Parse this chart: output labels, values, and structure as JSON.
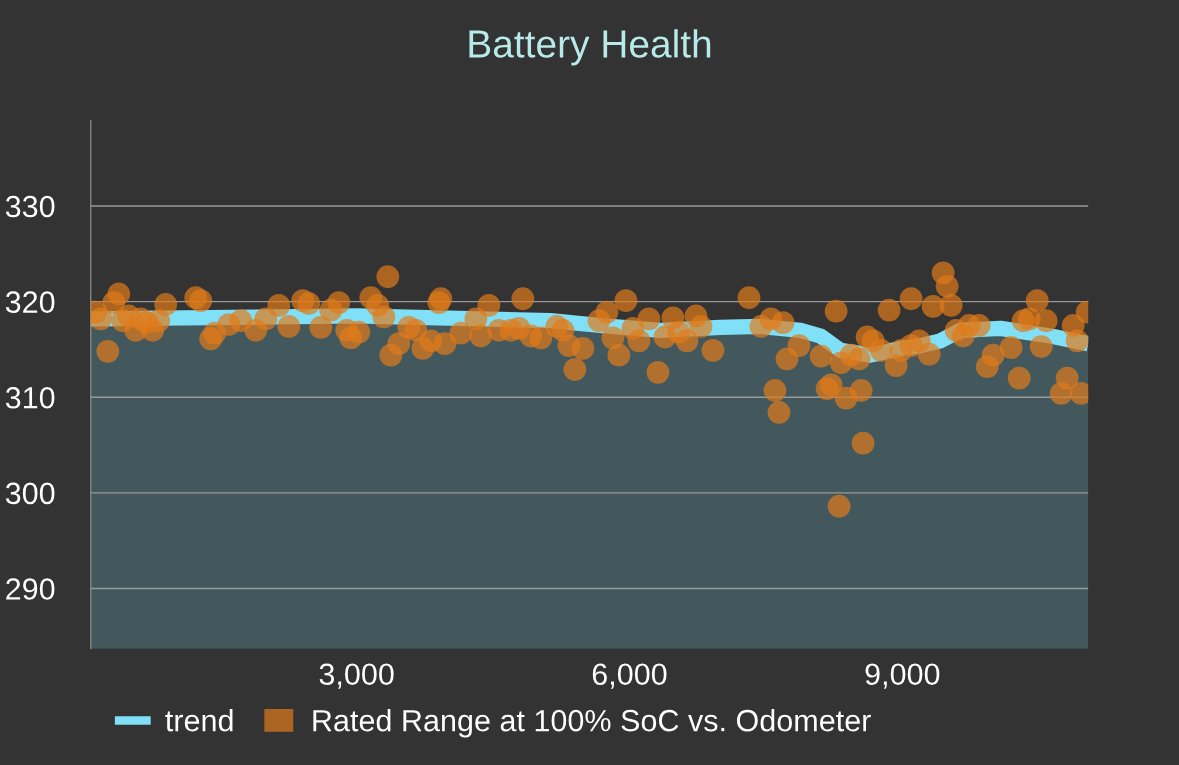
{
  "chart_data": {
    "type": "scatter",
    "title": "Battery Health",
    "xlim": [
      77,
      11044
    ],
    "ylim": [
      283.7,
      338.9
    ],
    "xticks": [
      {
        "value": 3000,
        "label": "3,000"
      },
      {
        "value": 6000,
        "label": "6,000"
      },
      {
        "value": 9000,
        "label": "9,000"
      }
    ],
    "yticks": [
      290,
      300,
      310,
      320,
      330
    ],
    "grid": "y",
    "legend": "bottom",
    "series": [
      {
        "name": "trend",
        "type": "area",
        "color": "#80e0f8",
        "x": [
          77,
          3000,
          5132,
          5682,
          6341,
          7000,
          7440,
          7880,
          8100,
          8320,
          8650,
          8980,
          9200,
          9420,
          9640,
          10080,
          10630,
          11044
        ],
        "values": [
          318.2,
          318.5,
          318.0,
          317.5,
          317.0,
          317.3,
          317.4,
          317.0,
          316.4,
          314.9,
          314.4,
          315.1,
          315.4,
          315.9,
          317.0,
          317.2,
          316.4,
          315.6
        ]
      },
      {
        "name": "Rated Range at 100% SoC vs. Odometer",
        "marker": "circle",
        "color": "#e07b1a",
        "x": [
          132,
          187,
          264,
          330,
          385,
          429,
          495,
          571,
          626,
          692,
          758,
          824,
          901,
          1231,
          1286,
          1396,
          1440,
          1594,
          1726,
          1891,
          2001,
          2144,
          2254,
          2408,
          2474,
          2606,
          2716,
          2804,
          2892,
          2936,
          3024,
          3156,
          3233,
          3299,
          3343,
          3376,
          3464,
          3574,
          3651,
          3728,
          3816,
          3904,
          3926,
          3970,
          4146,
          4311,
          4366,
          4454,
          4564,
          4696,
          4784,
          4828,
          4916,
          5026,
          5202,
          5268,
          5334,
          5400,
          5488,
          5664,
          5752,
          5818,
          5884,
          5961,
          6038,
          6104,
          6214,
          6313,
          6390,
          6478,
          6544,
          6632,
          6731,
          6786,
          6918,
          7314,
          7446,
          7556,
          7644,
          7600,
          7688,
          7732,
          7864,
          8107,
          8173,
          8217,
          8272,
          8327,
          8382,
          8437,
          8525,
          8547,
          8569,
          8305,
          8613,
          8679,
          8767,
          8855,
          8932,
          8987,
          9097,
          9097,
          9185,
          9295,
          9339,
          9449,
          9493,
          9537,
          9592,
          9669,
          9735,
          9845,
          9934,
          9999,
          10197,
          10285,
          10329,
          10395,
          10483,
          10527,
          10582,
          10747,
          10813,
          10879,
          10923,
          10967,
          11033
        ],
        "values": [
          318.9,
          318.2,
          314.8,
          319.9,
          320.8,
          318.0,
          318.5,
          317.0,
          318.2,
          317.8,
          317.0,
          318.0,
          319.7,
          320.4,
          320.1,
          316.1,
          316.7,
          317.6,
          318.0,
          317.0,
          318.2,
          319.6,
          317.4,
          320.1,
          319.8,
          317.3,
          319.1,
          319.9,
          317.0,
          316.2,
          316.8,
          320.4,
          319.6,
          318.4,
          322.6,
          314.4,
          315.6,
          317.3,
          317.0,
          315.1,
          315.9,
          319.9,
          320.3,
          315.6,
          316.7,
          318.2,
          316.4,
          319.6,
          317.0,
          317.0,
          317.2,
          320.3,
          316.4,
          316.2,
          317.4,
          317.0,
          315.4,
          312.9,
          315.1,
          318.0,
          318.9,
          316.2,
          314.4,
          320.1,
          317.2,
          315.9,
          318.2,
          312.6,
          316.3,
          318.3,
          316.8,
          315.9,
          318.5,
          317.4,
          314.9,
          320.4,
          317.4,
          318.2,
          308.4,
          310.7,
          317.8,
          314.0,
          315.4,
          314.3,
          310.9,
          311.3,
          319.0,
          313.6,
          309.9,
          314.4,
          314.0,
          310.7,
          305.2,
          298.6,
          316.3,
          315.9,
          314.9,
          319.1,
          313.3,
          314.9,
          320.3,
          315.4,
          315.9,
          314.5,
          319.5,
          323.0,
          321.6,
          319.6,
          317.0,
          316.4,
          317.5,
          317.5,
          313.2,
          314.4,
          315.2,
          312.0,
          318.0,
          318.2,
          320.1,
          315.3,
          318.0,
          310.4,
          312.0,
          317.5,
          315.9,
          310.4,
          318.9
        ]
      }
    ]
  }
}
